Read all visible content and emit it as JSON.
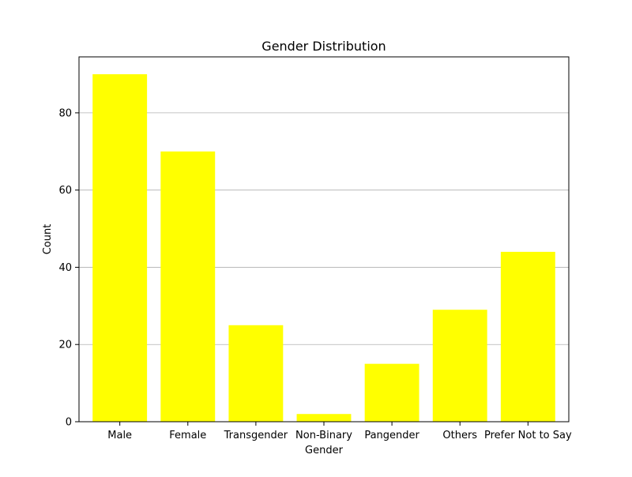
{
  "chart_data": {
    "type": "bar",
    "title": "Gender Distribution",
    "xlabel": "Gender",
    "ylabel": "Count",
    "categories": [
      "Male",
      "Female",
      "Transgender",
      "Non-Binary",
      "Pangender",
      "Others",
      "Prefer Not to Say"
    ],
    "values": [
      90,
      70,
      25,
      2,
      15,
      29,
      44
    ],
    "ylim": [
      0,
      94.5
    ],
    "yticks": [
      0,
      20,
      40,
      60,
      80
    ],
    "grid": "y-axis",
    "bar_color": "#ffff00",
    "grid_color": "#b0b0b0"
  }
}
